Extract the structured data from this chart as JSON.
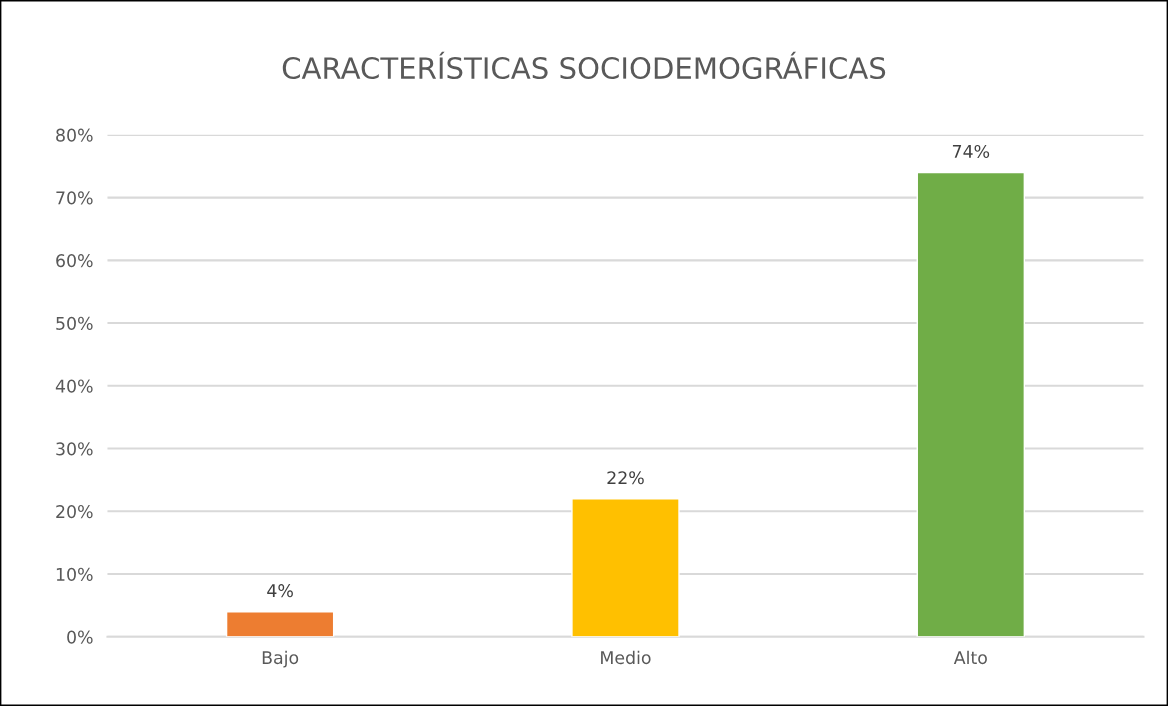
{
  "chart_data": {
    "type": "bar",
    "title": "CARACTERÍSTICAS SOCIODEMOGRÁFICAS",
    "categories": [
      "Bajo",
      "Medio",
      "Alto"
    ],
    "values": [
      4,
      22,
      74
    ],
    "colors": [
      "#ed7d31",
      "#ffc000",
      "#70ad47"
    ],
    "value_labels": [
      "4%",
      "22%",
      "74%"
    ],
    "ylim": [
      0,
      80
    ],
    "yticks": [
      {
        "value": 0,
        "label": "0%"
      },
      {
        "value": 10,
        "label": "10%"
      },
      {
        "value": 20,
        "label": "20%"
      },
      {
        "value": 30,
        "label": "30%"
      },
      {
        "value": 40,
        "label": "40%"
      },
      {
        "value": 50,
        "label": "50%"
      },
      {
        "value": 60,
        "label": "60%"
      },
      {
        "value": 70,
        "label": "70%"
      },
      {
        "value": 80,
        "label": "80%"
      }
    ],
    "grid": "y"
  }
}
